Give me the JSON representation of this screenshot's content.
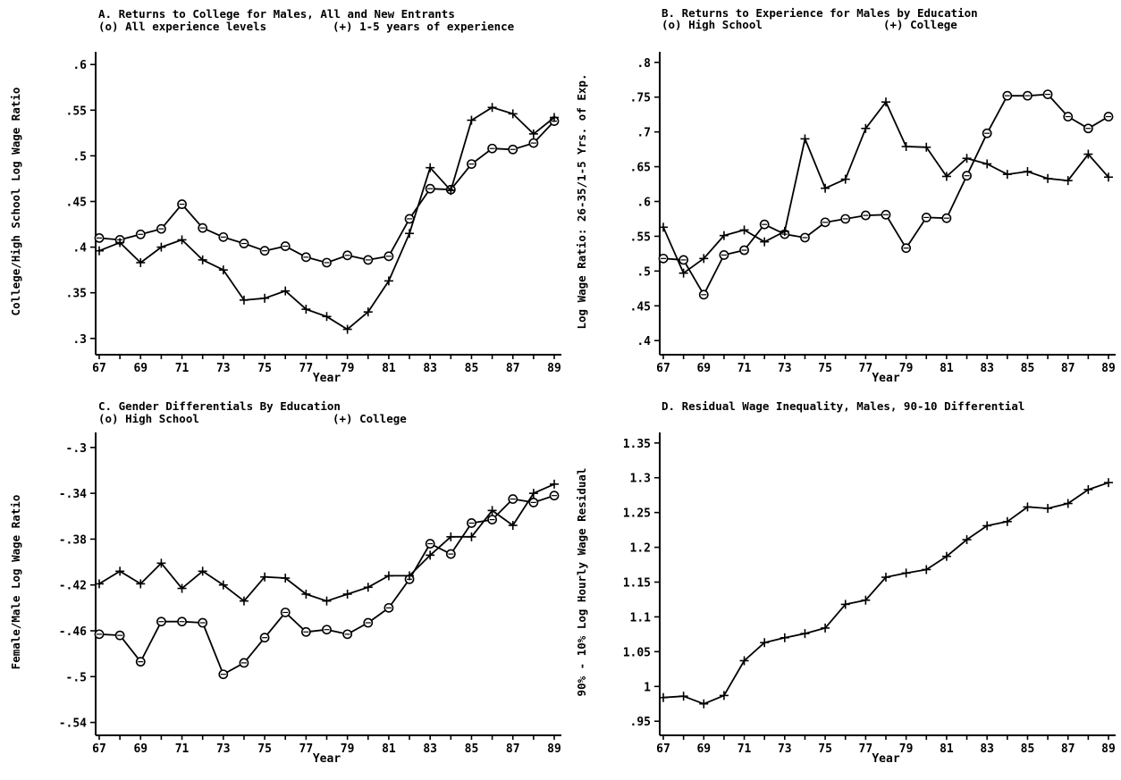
{
  "chart_data": [
    {
      "id": "A",
      "type": "line",
      "title": "A. Returns to College for Males, All and New Entrants",
      "legend_left": "(o) All experience levels",
      "legend_right": "(+) 1-5 years of experience",
      "xlabel": "Year",
      "ylabel": "College/High School Log Wage Ratio",
      "x": [
        67,
        68,
        69,
        70,
        71,
        72,
        73,
        74,
        75,
        76,
        77,
        78,
        79,
        80,
        81,
        82,
        83,
        84,
        85,
        86,
        87,
        88,
        89
      ],
      "xticks": [
        "67",
        "69",
        "71",
        "73",
        "75",
        "77",
        "79",
        "81",
        "83",
        "85",
        "87",
        "89"
      ],
      "xlim": [
        67,
        89
      ],
      "ylim": [
        0.29,
        0.61
      ],
      "yticks": [
        0.3,
        0.35,
        0.4,
        0.45,
        0.5,
        0.55,
        0.6
      ],
      "ytick_labels": [
        ".3",
        ".35",
        ".4",
        ".45",
        ".5",
        ".55",
        ".6"
      ],
      "series": [
        {
          "marker": "o",
          "values": [
            0.41,
            0.408,
            0.414,
            0.42,
            0.447,
            0.421,
            0.411,
            0.404,
            0.396,
            0.401,
            0.389,
            0.383,
            0.391,
            0.386,
            0.39,
            0.431,
            0.464,
            0.463,
            0.491,
            0.508,
            0.507,
            0.514,
            0.538
          ]
        },
        {
          "marker": "+",
          "values": [
            0.396,
            0.405,
            0.383,
            0.4,
            0.408,
            0.386,
            0.375,
            0.342,
            0.344,
            0.352,
            0.332,
            0.324,
            0.31,
            0.329,
            0.363,
            0.415,
            0.487,
            0.462,
            0.539,
            0.553,
            0.546,
            0.524,
            0.542
          ]
        }
      ]
    },
    {
      "id": "B",
      "type": "line",
      "title": "B. Returns to Experience for Males by Education",
      "legend_left": "(o) High School",
      "legend_right": "(+) College",
      "xlabel": "Year",
      "ylabel": "Log Wage Ratio: 26-35/1-5 Yrs. of Exp.",
      "x": [
        67,
        68,
        69,
        70,
        71,
        72,
        73,
        74,
        75,
        76,
        77,
        78,
        79,
        80,
        81,
        82,
        83,
        84,
        85,
        86,
        87,
        88,
        89
      ],
      "xticks": [
        "67",
        "69",
        "71",
        "73",
        "75",
        "77",
        "79",
        "81",
        "83",
        "85",
        "87",
        "89"
      ],
      "xlim": [
        67,
        89
      ],
      "ylim": [
        0.39,
        0.81
      ],
      "yticks": [
        0.4,
        0.45,
        0.5,
        0.55,
        0.6,
        0.65,
        0.7,
        0.75,
        0.8
      ],
      "ytick_labels": [
        ".4",
        ".45",
        ".5",
        ".55",
        ".6",
        ".65",
        ".7",
        ".75",
        ".8"
      ],
      "series": [
        {
          "marker": "o",
          "values": [
            0.518,
            0.516,
            0.466,
            0.523,
            0.53,
            0.567,
            0.553,
            0.548,
            0.57,
            0.575,
            0.58,
            0.581,
            0.533,
            0.577,
            0.576,
            0.637,
            0.698,
            0.752,
            0.752,
            0.754,
            0.722,
            0.705,
            0.722
          ]
        },
        {
          "marker": "+",
          "values": [
            0.563,
            0.497,
            0.518,
            0.551,
            0.559,
            0.542,
            0.557,
            0.69,
            0.619,
            0.632,
            0.705,
            0.743,
            0.679,
            0.678,
            0.636,
            0.662,
            0.654,
            0.639,
            0.643,
            0.633,
            0.63,
            0.668,
            0.635
          ]
        }
      ]
    },
    {
      "id": "C",
      "type": "line",
      "title": "C. Gender Differentials By Education",
      "legend_left": "(o) High School",
      "legend_right": "(+) College",
      "xlabel": "Year",
      "ylabel": "Female/Male Log Wage Ratio",
      "x": [
        67,
        68,
        69,
        70,
        71,
        72,
        73,
        74,
        75,
        76,
        77,
        78,
        79,
        80,
        81,
        82,
        83,
        84,
        85,
        86,
        87,
        88,
        89
      ],
      "xticks": [
        "67",
        "69",
        "71",
        "73",
        "75",
        "77",
        "79",
        "81",
        "83",
        "85",
        "87",
        "89"
      ],
      "xlim": [
        67,
        89
      ],
      "ylim": [
        -0.545,
        -0.29
      ],
      "yticks": [
        -0.54,
        -0.5,
        -0.46,
        -0.42,
        -0.38,
        -0.34,
        -0.3
      ],
      "ytick_labels": [
        "-.54",
        "-.5",
        "-.46",
        "-.42",
        "-.38",
        "-.34",
        "-.3"
      ],
      "series": [
        {
          "marker": "o",
          "values": [
            -0.463,
            -0.464,
            -0.487,
            -0.452,
            -0.452,
            -0.453,
            -0.498,
            -0.488,
            -0.466,
            -0.444,
            -0.461,
            -0.459,
            -0.463,
            -0.453,
            -0.44,
            -0.415,
            -0.384,
            -0.393,
            -0.366,
            -0.363,
            -0.345,
            -0.348,
            -0.342
          ]
        },
        {
          "marker": "+",
          "values": [
            -0.419,
            -0.408,
            -0.419,
            -0.401,
            -0.423,
            -0.408,
            -0.42,
            -0.434,
            -0.413,
            -0.414,
            -0.428,
            -0.434,
            -0.428,
            -0.422,
            -0.412,
            -0.412,
            -0.394,
            -0.378,
            -0.378,
            -0.355,
            -0.368,
            -0.34,
            -0.332
          ]
        }
      ]
    },
    {
      "id": "D",
      "type": "line",
      "title": "D. Residual Wage Inequality, Males, 90-10 Differential",
      "xlabel": "Year",
      "ylabel": "90% - 10% Log Hourly Wage Residual",
      "x": [
        67,
        68,
        69,
        70,
        71,
        72,
        73,
        74,
        75,
        76,
        77,
        78,
        79,
        80,
        81,
        82,
        83,
        84,
        85,
        86,
        87,
        88,
        89
      ],
      "xticks": [
        "67",
        "69",
        "71",
        "73",
        "75",
        "77",
        "79",
        "81",
        "83",
        "85",
        "87",
        "89"
      ],
      "xlim": [
        67,
        89
      ],
      "ylim": [
        0.94,
        1.36
      ],
      "yticks": [
        0.95,
        1.0,
        1.05,
        1.1,
        1.15,
        1.2,
        1.25,
        1.3,
        1.35
      ],
      "ytick_labels": [
        ".95",
        "1",
        "1.05",
        "1.1",
        "1.15",
        "1.2",
        "1.25",
        "1.3",
        "1.35"
      ],
      "series": [
        {
          "marker": "+",
          "values": [
            0.984,
            0.986,
            0.975,
            0.987,
            1.037,
            1.063,
            1.07,
            1.076,
            1.084,
            1.118,
            1.124,
            1.157,
            1.163,
            1.168,
            1.187,
            1.211,
            1.231,
            1.237,
            1.258,
            1.256,
            1.263,
            1.283,
            1.293
          ]
        }
      ]
    }
  ]
}
